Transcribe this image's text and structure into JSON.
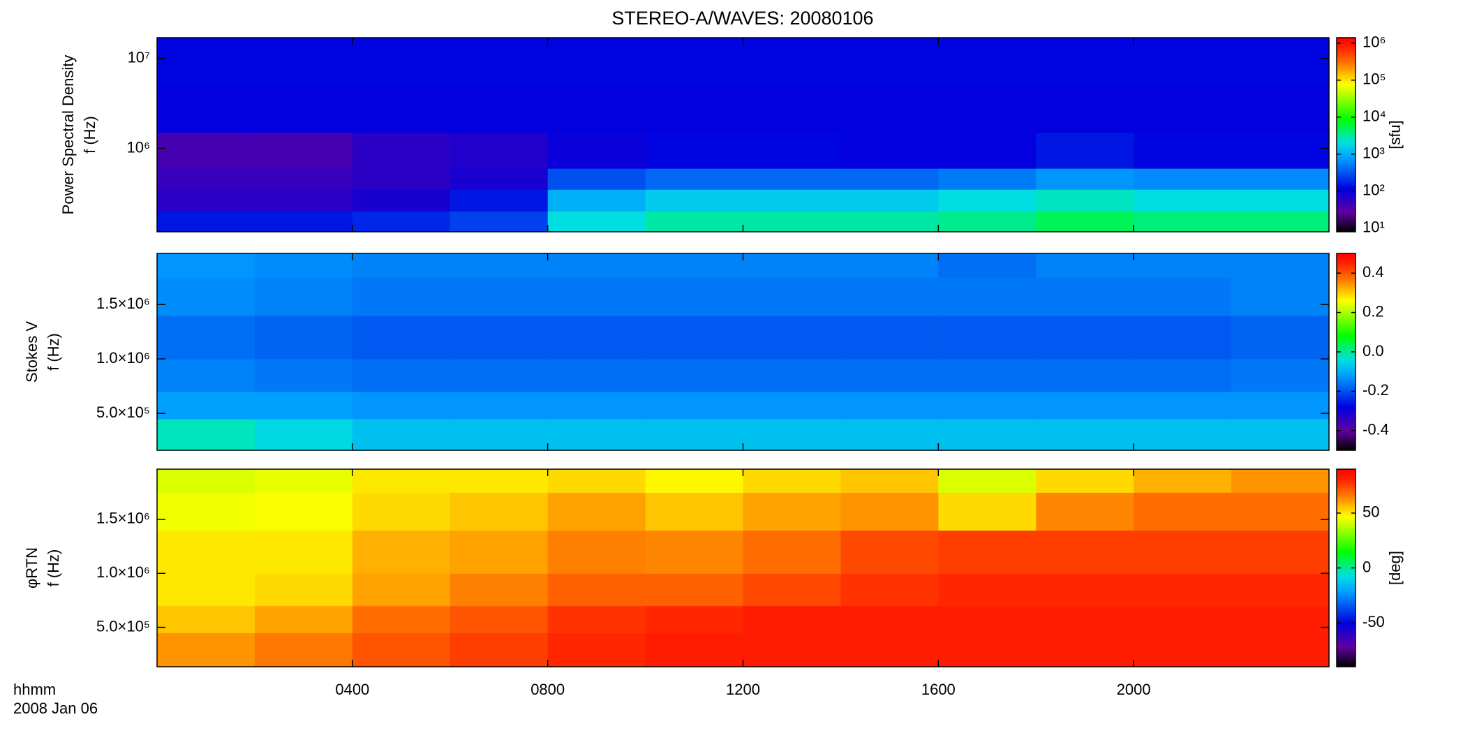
{
  "chart_data": [
    {
      "type": "heatmap",
      "title": "STEREO-A/WAVES: 20080106",
      "ylabel": [
        "Power Spectral Density",
        "f (Hz)"
      ],
      "log_y": true,
      "ylim": [
        118000,
        17000000
      ],
      "yticks": [
        {
          "value": 1000000,
          "label": "10⁶"
        },
        {
          "value": 10000000,
          "label": "10⁷"
        }
      ],
      "x_edges": [
        0,
        2,
        4,
        6,
        8,
        10,
        12,
        14,
        16,
        18,
        20,
        22,
        24
      ],
      "y_edges": [
        118000,
        200000,
        350000,
        600000,
        1500000,
        5000000,
        17000000
      ],
      "values": [
        [
          150,
          150,
          180,
          250,
          2000,
          3000,
          3000,
          3000,
          3500,
          5000,
          4000,
          4000
        ],
        [
          60,
          60,
          80,
          150,
          1000,
          1500,
          1500,
          1500,
          2000,
          2500,
          2000,
          2000
        ],
        [
          50,
          50,
          60,
          80,
          300,
          400,
          400,
          400,
          500,
          700,
          600,
          600
        ],
        [
          40,
          40,
          60,
          70,
          100,
          120,
          120,
          110,
          110,
          150,
          120,
          120
        ],
        [
          110,
          110,
          110,
          110,
          110,
          110,
          110,
          110,
          110,
          110,
          110,
          110
        ],
        [
          120,
          120,
          120,
          120,
          120,
          120,
          120,
          120,
          120,
          120,
          120,
          120
        ]
      ],
      "log_c": true,
      "clim": [
        8,
        1400000
      ],
      "cticks": [
        {
          "value": 10,
          "label": "10¹"
        },
        {
          "value": 100,
          "label": "10²"
        },
        {
          "value": 1000,
          "label": "10³"
        },
        {
          "value": 10000,
          "label": "10⁴"
        },
        {
          "value": 100000,
          "label": "10⁵"
        },
        {
          "value": 1000000,
          "label": "10⁶"
        }
      ],
      "colorbar_label": "[sfu]",
      "colormap": [
        [
          0,
          "#000000"
        ],
        [
          0.1,
          "#6000a0"
        ],
        [
          0.22,
          "#0000e0"
        ],
        [
          0.38,
          "#00a0ff"
        ],
        [
          0.46,
          "#00e0e0"
        ],
        [
          0.58,
          "#00ff00"
        ],
        [
          0.76,
          "#ffff00"
        ],
        [
          0.86,
          "#ff8000"
        ],
        [
          0.95,
          "#ff2000"
        ],
        [
          1,
          "#ff0000"
        ]
      ]
    },
    {
      "type": "heatmap",
      "ylabel": [
        "Stokes V",
        "f (Hz)"
      ],
      "log_y": false,
      "ylim": [
        160000,
        1970000
      ],
      "yticks": [
        {
          "value": 500000,
          "label": "5.0×10⁵"
        },
        {
          "value": 1000000,
          "label": "1.0×10⁶"
        },
        {
          "value": 1500000,
          "label": "1.5×10⁶"
        }
      ],
      "x_edges": [
        0,
        2,
        4,
        6,
        8,
        10,
        12,
        14,
        16,
        18,
        20,
        22,
        24
      ],
      "y_edges": [
        160000,
        450000,
        700000,
        1000000,
        1400000,
        1750000,
        1970000
      ],
      "values": [
        [
          -0.02,
          -0.05,
          -0.08,
          -0.08,
          -0.08,
          -0.08,
          -0.08,
          -0.08,
          -0.08,
          -0.08,
          -0.08,
          -0.08
        ],
        [
          -0.12,
          -0.12,
          -0.13,
          -0.13,
          -0.13,
          -0.13,
          -0.13,
          -0.13,
          -0.13,
          -0.13,
          -0.13,
          -0.13
        ],
        [
          -0.15,
          -0.16,
          -0.17,
          -0.17,
          -0.17,
          -0.17,
          -0.17,
          -0.17,
          -0.17,
          -0.17,
          -0.17,
          -0.16
        ],
        [
          -0.17,
          -0.18,
          -0.19,
          -0.19,
          -0.19,
          -0.19,
          -0.19,
          -0.19,
          -0.19,
          -0.19,
          -0.19,
          -0.18
        ],
        [
          -0.14,
          -0.15,
          -0.16,
          -0.16,
          -0.16,
          -0.16,
          -0.16,
          -0.16,
          -0.16,
          -0.16,
          -0.16,
          -0.15
        ],
        [
          -0.13,
          -0.14,
          -0.15,
          -0.15,
          -0.15,
          -0.15,
          -0.15,
          -0.15,
          -0.17,
          -0.15,
          -0.15,
          -0.15
        ]
      ],
      "log_c": false,
      "clim": [
        -0.5,
        0.5
      ],
      "cticks": [
        -0.4,
        -0.2,
        {
          "value": 0,
          "label": "0.0"
        },
        0.2,
        0.4
      ]
    },
    {
      "type": "heatmap",
      "ylabel": [
        "φRTN",
        "f (Hz)"
      ],
      "log_y": false,
      "ylim": [
        135000,
        1965000
      ],
      "yticks": [
        {
          "value": 500000,
          "label": "5.0×10⁵"
        },
        {
          "value": 1000000,
          "label": "1.0×10⁶"
        },
        {
          "value": 1500000,
          "label": "1.5×10⁶"
        }
      ],
      "x_edges": [
        0,
        2,
        4,
        6,
        8,
        10,
        12,
        14,
        16,
        18,
        20,
        22,
        24
      ],
      "y_edges": [
        135000,
        450000,
        700000,
        1000000,
        1400000,
        1750000,
        1965000
      ],
      "values": [
        [
          62,
          66,
          72,
          76,
          80,
          82,
          82,
          82,
          82,
          82,
          82,
          82
        ],
        [
          55,
          60,
          68,
          72,
          78,
          80,
          82,
          82,
          82,
          82,
          82,
          82
        ],
        [
          50,
          52,
          60,
          65,
          70,
          70,
          74,
          78,
          80,
          80,
          80,
          80
        ],
        [
          50,
          50,
          58,
          60,
          65,
          64,
          68,
          74,
          76,
          76,
          76,
          76
        ],
        [
          45,
          46,
          52,
          55,
          60,
          55,
          60,
          62,
          52,
          64,
          68,
          68
        ],
        [
          42,
          44,
          50,
          50,
          52,
          48,
          52,
          55,
          42,
          52,
          58,
          62
        ]
      ],
      "log_c": false,
      "clim": [
        -90,
        90
      ],
      "cticks": [
        -50,
        0,
        50
      ],
      "colorbar_label": "[deg]",
      "xlim": [
        0,
        24
      ],
      "xticks": [
        {
          "value": 4,
          "label": "0400"
        },
        {
          "value": 8,
          "label": "0800"
        },
        {
          "value": 12,
          "label": "1200"
        },
        {
          "value": 16,
          "label": "1600"
        },
        {
          "value": 20,
          "label": "2000"
        }
      ],
      "xlabel": "hhmm",
      "date_label": "2008 Jan 06"
    }
  ]
}
